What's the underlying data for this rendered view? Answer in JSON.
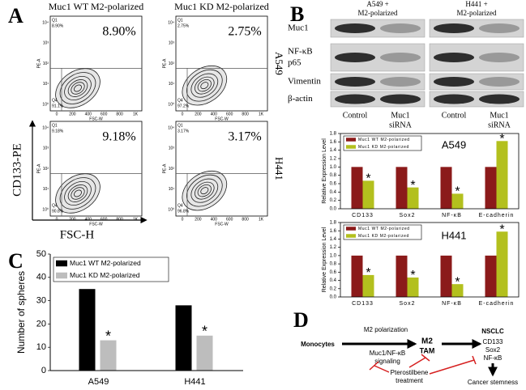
{
  "panel_a": {
    "label": "A",
    "columns": [
      "Muc1 WT M2-polarized",
      "Muc1 KD M2-polarized"
    ],
    "rows": [
      "A549",
      "H441"
    ],
    "y_axis_label": "CD133-PE",
    "x_axis_label": "FSC-H",
    "plot_y_label": "PE-A",
    "plot_x_label": "FSC-W",
    "plot_y_ticks": [
      "10⁴",
      "10³",
      "10²",
      "10¹",
      "10⁰"
    ],
    "plot_x_ticks": [
      "0",
      "200",
      "400",
      "600",
      "800",
      "1K"
    ],
    "plots": [
      {
        "percent": "8.90%",
        "q1": "Q1",
        "q1_value": "8.90%",
        "q4": "Q4",
        "q4_value": "91.1%"
      },
      {
        "percent": "2.75%",
        "q1": "Q1",
        "q1_value": "2.75%",
        "q4": "Q4",
        "q4_value": "97.2%"
      },
      {
        "percent": "9.18%",
        "q1": "Q1",
        "q1_value": "9.18%",
        "q4": "Q4",
        "q4_value": "90.8%"
      },
      {
        "percent": "3.17%",
        "q1": "Q1",
        "q1_value": "3.17%",
        "q4": "Q4",
        "q4_value": "96.8%"
      }
    ]
  },
  "panel_b": {
    "label": "B",
    "groups": [
      [
        "A549 +",
        "M2-polarized"
      ],
      [
        "H441 +",
        "M2-polarized"
      ]
    ],
    "proteins": [
      [
        "Muc1"
      ],
      [
        "NF-κB",
        "p65"
      ],
      [
        "Vimentin"
      ],
      [
        "β-actin"
      ]
    ],
    "lanes": [
      [
        "Control"
      ],
      [
        "Muc1",
        "siRNA"
      ],
      [
        "Control"
      ],
      [
        "Muc1",
        "siRNA"
      ]
    ]
  },
  "panel_c": {
    "label": "C"
  },
  "panel_d": {
    "label": "D",
    "monocytes": "Monocytes",
    "m2_polarization": "M2 polarization",
    "signaling": [
      "Muc1/NF-κB",
      "signaling"
    ],
    "tam": [
      "M2",
      "TAM"
    ],
    "nsclc": "NSCLC",
    "markers": [
      "CD133",
      "Sox2",
      "NF-κB"
    ],
    "treatment": [
      "Pterostilbene",
      "treatment"
    ],
    "outcome": "Cancer stemness"
  },
  "chart_data": [
    {
      "type": "bar",
      "y_label": "Number of spheres",
      "categories": [
        "A549",
        "H441"
      ],
      "series": [
        {
          "name": "Muc1 WT M2-polarized",
          "color": "#000000",
          "values": [
            35,
            28
          ]
        },
        {
          "name": "Muc1 KD M2-polarized",
          "color": "#bdbdbd",
          "values": [
            13,
            15
          ]
        }
      ],
      "annotation": "*",
      "ylim": [
        0,
        50
      ],
      "yticks": [
        0,
        10,
        20,
        30,
        40,
        50
      ]
    },
    {
      "type": "bar",
      "title": "A549",
      "y_label": "Relative Expression Level",
      "categories": [
        "CD133",
        "Sox2",
        "NF-κB",
        "E-cadherin"
      ],
      "series": [
        {
          "name": "Muc1 WT M2-polarized",
          "color": "#8b1a1a",
          "values": [
            1,
            1,
            1,
            1
          ]
        },
        {
          "name": "Muc1 KD M2-polarized",
          "color": "#b3c01e",
          "values": [
            0.67,
            0.51,
            0.36,
            1.62
          ]
        }
      ],
      "annotation": "*",
      "ylim": [
        0,
        1.8
      ],
      "yticks": [
        {
          "value": 0,
          "label": "0.0"
        },
        0.2,
        0.4,
        0.6,
        0.8,
        {
          "value": 1,
          "label": "1.0"
        },
        1.2,
        1.4,
        1.6,
        1.8
      ]
    },
    {
      "type": "bar",
      "title": "H441",
      "y_label": "Relative Expression Level",
      "categories": [
        "CD133",
        "Sox2",
        "NF-κB",
        "E-cadherin"
      ],
      "series": [
        {
          "name": "Muc1 WT M2-polarized",
          "color": "#8b1a1a",
          "values": [
            1,
            1,
            1,
            1
          ]
        },
        {
          "name": "Muc1 KD M2-polarized",
          "color": "#b3c01e",
          "values": [
            0.53,
            0.47,
            0.31,
            1.58
          ]
        }
      ],
      "annotation": "*",
      "ylim": [
        0,
        1.8
      ],
      "yticks": [
        {
          "value": 0,
          "label": "0.0"
        },
        0.2,
        0.4,
        0.6,
        0.8,
        {
          "value": 1,
          "label": "1.0"
        },
        1.2,
        1.4,
        1.6,
        1.8
      ]
    }
  ]
}
